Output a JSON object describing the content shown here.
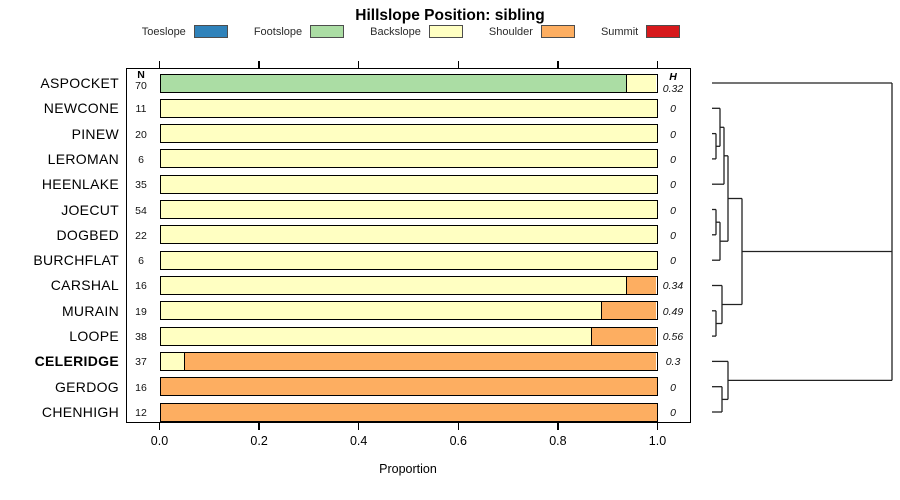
{
  "columns": {
    "n_header": "N",
    "h_header": "H"
  },
  "legend": {
    "position": "top",
    "items": [
      {
        "label": "Toeslope",
        "color": "#2f82ba"
      },
      {
        "label": "Footslope",
        "color": "#abdda4"
      },
      {
        "label": "Backslope",
        "color": "#ffffc2"
      },
      {
        "label": "Shoulder",
        "color": "#fdae61"
      },
      {
        "label": "Summit",
        "color": "#d7191c"
      }
    ]
  },
  "x_axis": {
    "label": "Proportion",
    "range": [
      0,
      1
    ],
    "ticks": [
      0,
      0.2,
      0.4,
      0.6,
      0.8,
      1.0
    ],
    "tick_labels": [
      "0.0",
      "0.2",
      "0.4",
      "0.6",
      "0.8",
      "1.0"
    ]
  },
  "chart_data": {
    "type": "bar",
    "orientation": "horizontal_stacked",
    "title": "Hillslope Position: sibling",
    "xlabel": "Proportion",
    "xlim": [
      0,
      1
    ],
    "grid": false,
    "legend_position": "top",
    "categories": [
      "ASPOCKET",
      "NEWCONE",
      "PINEW",
      "LEROMAN",
      "HEENLAKE",
      "JOECUT",
      "DOGBED",
      "BURCHFLAT",
      "CARSHAL",
      "MURAIN",
      "LOOPE",
      "CELERIDGE",
      "GERDOG",
      "CHENHIGH"
    ],
    "highlighted_category": "CELERIDGE",
    "n_values": [
      70,
      11,
      20,
      6,
      35,
      54,
      22,
      6,
      16,
      19,
      38,
      37,
      16,
      12
    ],
    "h_values": [
      "0.32",
      "0",
      "0",
      "0",
      "0",
      "0",
      "0",
      "0",
      "0.34",
      "0.49",
      "0.56",
      "0.3",
      "0",
      "0"
    ],
    "series": [
      {
        "name": "Toeslope",
        "values": [
          0,
          0,
          0,
          0,
          0,
          0,
          0,
          0,
          0,
          0,
          0,
          0,
          0,
          0
        ]
      },
      {
        "name": "Footslope",
        "values": [
          0.94,
          0,
          0,
          0,
          0,
          0,
          0,
          0,
          0,
          0,
          0,
          0,
          0,
          0
        ]
      },
      {
        "name": "Backslope",
        "values": [
          0.06,
          1,
          1,
          1,
          1,
          1,
          1,
          1,
          0.94,
          0.89,
          0.87,
          0.05,
          0,
          0
        ]
      },
      {
        "name": "Shoulder",
        "values": [
          0,
          0,
          0,
          0,
          0,
          0,
          0,
          0,
          0.06,
          0.11,
          0.13,
          0.95,
          1,
          1
        ]
      },
      {
        "name": "Summit",
        "values": [
          0,
          0,
          0,
          0,
          0,
          0,
          0,
          0,
          0,
          0,
          0,
          0,
          0,
          0
        ]
      }
    ]
  },
  "dendrogram": {
    "topology": [
      "ASPOCKET",
      [
        [
          [
            [
              [
                "NEWCONE",
                [
                  "PINEW",
                  "LEROMAN"
                ]
              ],
              "HEENLAKE"
            ],
            [
              [
                "JOECUT",
                "DOGBED"
              ],
              "BURCHFLAT"
            ]
          ],
          [
            "CARSHAL",
            [
              "MURAIN",
              "LOOPE"
            ]
          ]
        ],
        [
          "CELERIDGE",
          [
            "GERDOG",
            "CHENHIGH"
          ]
        ]
      ]
    ],
    "segments_h": [
      [
        83,
        712,
        892
      ],
      [
        108.3,
        712,
        720
      ],
      [
        133.6,
        712,
        716
      ],
      [
        158.9,
        712,
        716
      ],
      [
        184.2,
        712,
        724
      ],
      [
        209.5,
        712,
        716
      ],
      [
        234.8,
        712,
        716
      ],
      [
        260.2,
        712,
        720
      ],
      [
        285.5,
        712,
        722
      ],
      [
        310.8,
        712,
        716
      ],
      [
        336.1,
        712,
        716
      ],
      [
        361.4,
        712,
        728
      ],
      [
        386.7,
        712,
        722
      ],
      [
        412,
        712,
        722
      ],
      [
        146.3,
        716,
        720
      ],
      [
        127.3,
        720,
        724
      ],
      [
        155.8,
        724,
        728
      ],
      [
        222.2,
        716,
        720
      ],
      [
        241.2,
        720,
        728
      ],
      [
        198.5,
        728,
        742
      ],
      [
        323.5,
        716,
        722
      ],
      [
        304.5,
        722,
        742
      ],
      [
        251.5,
        742,
        892
      ],
      [
        399.4,
        722,
        728
      ],
      [
        380.4,
        728,
        892
      ]
    ],
    "segments_v": [
      [
        716,
        133.6,
        158.9
      ],
      [
        720,
        108.3,
        146.3
      ],
      [
        724,
        127.3,
        184.2
      ],
      [
        716,
        209.5,
        234.8
      ],
      [
        720,
        222.2,
        260.2
      ],
      [
        728,
        155.8,
        241.2
      ],
      [
        716,
        310.8,
        336.1
      ],
      [
        722,
        285.5,
        323.5
      ],
      [
        742,
        198.5,
        304.5
      ],
      [
        722,
        386.7,
        412
      ],
      [
        728,
        361.4,
        399.4
      ],
      [
        892,
        83,
        380.4
      ]
    ]
  }
}
